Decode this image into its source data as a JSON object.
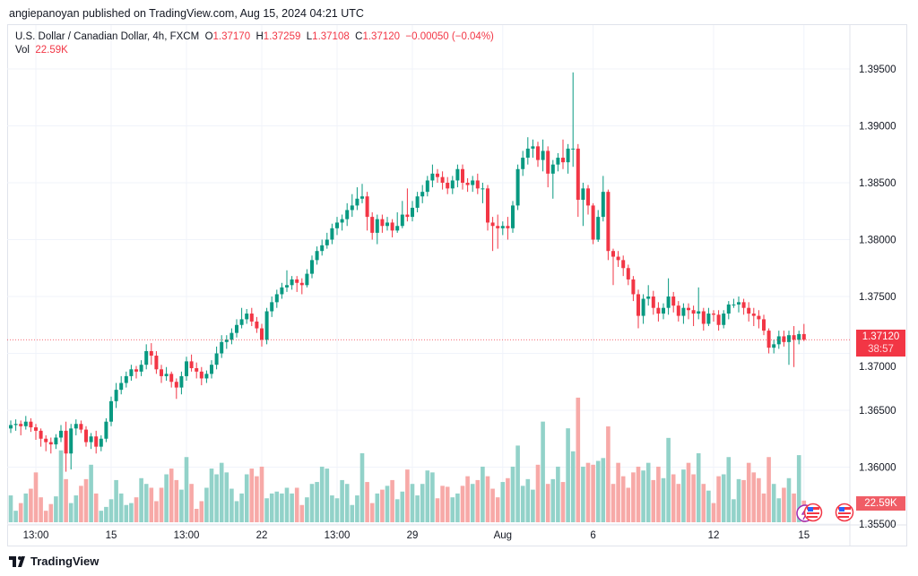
{
  "header": {
    "published": "angiepanoyan published on TradingView.com, Aug 15, 2024 04:21 UTC"
  },
  "legend": {
    "symbol": "U.S. Dollar / Canadian Dollar, 4h, FXCM",
    "o_label": "O",
    "o": "1.37170",
    "h_label": "H",
    "h": "1.37259",
    "l_label": "L",
    "l": "1.37108",
    "c_label": "C",
    "c": "1.37120",
    "change": "−0.00050 (−0.04%)",
    "vol_label": "Vol",
    "vol": "22.59K"
  },
  "price_label": {
    "price": "1.37120",
    "countdown": "38:57"
  },
  "volume_label": "22.59K",
  "footer": {
    "brand": "TradingView"
  },
  "colors": {
    "up": "#089981",
    "down": "#f23645",
    "up_vol": "#92d2c9",
    "down_vol": "#f7a9a7",
    "grid": "#f0f3fa"
  },
  "chart_data": {
    "type": "candlestick",
    "title": "U.S. Dollar / Canadian Dollar, 4h, FXCM",
    "first_open": 1.3634,
    "y_ticks": [
      "1.39500",
      "1.39000",
      "1.38500",
      "1.38000",
      "1.37500",
      "1.37000",
      "1.36500",
      "1.36000",
      "1.35500"
    ],
    "ylim": [
      1.355,
      1.3955
    ],
    "x_ticks": [
      {
        "label": "13:00",
        "index": 5
      },
      {
        "label": "15",
        "index": 20
      },
      {
        "label": "13:00",
        "index": 35
      },
      {
        "label": "22",
        "index": 50
      },
      {
        "label": "13:00",
        "index": 65
      },
      {
        "label": "29",
        "index": 80
      },
      {
        "label": "Aug",
        "index": 98
      },
      {
        "label": "6",
        "index": 116
      },
      {
        "label": "12",
        "index": 140
      },
      {
        "label": "15",
        "index": 158
      }
    ],
    "candles_format": "[close, high, low, volume_K] — open equals previous close",
    "candles": [
      [
        1.3637,
        1.3641,
        1.363,
        28
      ],
      [
        1.3638,
        1.3642,
        1.3632,
        12
      ],
      [
        1.3636,
        1.3641,
        1.3628,
        20
      ],
      [
        1.364,
        1.3645,
        1.3633,
        30
      ],
      [
        1.3635,
        1.3643,
        1.3631,
        35
      ],
      [
        1.3632,
        1.3638,
        1.3624,
        52
      ],
      [
        1.3625,
        1.3634,
        1.3618,
        26
      ],
      [
        1.3622,
        1.3628,
        1.3614,
        12
      ],
      [
        1.362,
        1.3626,
        1.3612,
        19
      ],
      [
        1.3626,
        1.3629,
        1.3616,
        27
      ],
      [
        1.3632,
        1.3637,
        1.3622,
        75
      ],
      [
        1.3612,
        1.364,
        1.3596,
        45
      ],
      [
        1.3634,
        1.3638,
        1.3598,
        20
      ],
      [
        1.3638,
        1.3642,
        1.3628,
        28
      ],
      [
        1.3633,
        1.3641,
        1.363,
        38
      ],
      [
        1.3622,
        1.3636,
        1.3618,
        45
      ],
      [
        1.3627,
        1.363,
        1.3616,
        60
      ],
      [
        1.3618,
        1.3632,
        1.3612,
        30
      ],
      [
        1.3625,
        1.3628,
        1.3614,
        12
      ],
      [
        1.364,
        1.3643,
        1.3622,
        16
      ],
      [
        1.3658,
        1.3662,
        1.3636,
        24
      ],
      [
        1.3668,
        1.3674,
        1.3652,
        44
      ],
      [
        1.3674,
        1.368,
        1.3664,
        30
      ],
      [
        1.368,
        1.3684,
        1.367,
        18
      ],
      [
        1.3686,
        1.369,
        1.3676,
        20
      ],
      [
        1.3684,
        1.3689,
        1.3678,
        26
      ],
      [
        1.369,
        1.3694,
        1.368,
        46
      ],
      [
        1.3702,
        1.3708,
        1.3686,
        40
      ],
      [
        1.3698,
        1.3709,
        1.369,
        36
      ],
      [
        1.3686,
        1.3702,
        1.3682,
        22
      ],
      [
        1.368,
        1.369,
        1.3674,
        36
      ],
      [
        1.3682,
        1.3688,
        1.3676,
        50
      ],
      [
        1.3675,
        1.3684,
        1.367,
        56
      ],
      [
        1.367,
        1.3678,
        1.366,
        44
      ],
      [
        1.368,
        1.3684,
        1.3664,
        34
      ],
      [
        1.3693,
        1.3697,
        1.3676,
        68
      ],
      [
        1.3687,
        1.3699,
        1.3684,
        40
      ],
      [
        1.3684,
        1.3692,
        1.3678,
        14
      ],
      [
        1.3678,
        1.3688,
        1.3672,
        22
      ],
      [
        1.3682,
        1.3685,
        1.3674,
        36
      ],
      [
        1.369,
        1.3694,
        1.3678,
        56
      ],
      [
        1.37,
        1.3706,
        1.3686,
        50
      ],
      [
        1.371,
        1.3716,
        1.3696,
        62
      ],
      [
        1.3712,
        1.3716,
        1.3704,
        52
      ],
      [
        1.3718,
        1.3722,
        1.3708,
        35
      ],
      [
        1.3725,
        1.373,
        1.3714,
        22
      ],
      [
        1.373,
        1.374,
        1.3722,
        30
      ],
      [
        1.3735,
        1.3739,
        1.3726,
        50
      ],
      [
        1.3728,
        1.374,
        1.3724,
        56
      ],
      [
        1.3722,
        1.3732,
        1.3718,
        48
      ],
      [
        1.3712,
        1.3726,
        1.3706,
        58
      ],
      [
        1.3737,
        1.374,
        1.3708,
        25
      ],
      [
        1.3745,
        1.375,
        1.3732,
        30
      ],
      [
        1.3752,
        1.3756,
        1.374,
        32
      ],
      [
        1.3758,
        1.3762,
        1.3748,
        30
      ],
      [
        1.376,
        1.3773,
        1.3754,
        36
      ],
      [
        1.3765,
        1.3768,
        1.3756,
        30
      ],
      [
        1.3762,
        1.3768,
        1.3754,
        36
      ],
      [
        1.376,
        1.3766,
        1.3752,
        18
      ],
      [
        1.377,
        1.3774,
        1.3758,
        26
      ],
      [
        1.3782,
        1.3786,
        1.3766,
        40
      ],
      [
        1.379,
        1.3794,
        1.3778,
        42
      ],
      [
        1.3795,
        1.38,
        1.3786,
        58
      ],
      [
        1.38,
        1.3806,
        1.3792,
        56
      ],
      [
        1.381,
        1.3814,
        1.3796,
        28
      ],
      [
        1.3815,
        1.382,
        1.3804,
        25
      ],
      [
        1.3818,
        1.3822,
        1.3808,
        44
      ],
      [
        1.3826,
        1.3832,
        1.3812,
        40
      ],
      [
        1.383,
        1.384,
        1.382,
        18
      ],
      [
        1.3836,
        1.3846,
        1.3826,
        28
      ],
      [
        1.3838,
        1.3849,
        1.3832,
        72
      ],
      [
        1.382,
        1.3842,
        1.3808,
        42
      ],
      [
        1.3806,
        1.3824,
        1.38,
        20
      ],
      [
        1.3818,
        1.3822,
        1.3796,
        30
      ],
      [
        1.3812,
        1.3822,
        1.3806,
        34
      ],
      [
        1.3815,
        1.382,
        1.3808,
        38
      ],
      [
        1.3808,
        1.3818,
        1.3802,
        44
      ],
      [
        1.3812,
        1.3824,
        1.3806,
        24
      ],
      [
        1.3822,
        1.3834,
        1.381,
        32
      ],
      [
        1.382,
        1.3845,
        1.3816,
        55
      ],
      [
        1.3828,
        1.3834,
        1.3816,
        40
      ],
      [
        1.3838,
        1.3842,
        1.3824,
        28
      ],
      [
        1.3842,
        1.3848,
        1.3832,
        40
      ],
      [
        1.3852,
        1.3856,
        1.3838,
        54
      ],
      [
        1.3858,
        1.3866,
        1.3846,
        52
      ],
      [
        1.3855,
        1.3862,
        1.385,
        25
      ],
      [
        1.385,
        1.386,
        1.3844,
        38
      ],
      [
        1.3845,
        1.3855,
        1.384,
        37
      ],
      [
        1.3852,
        1.3856,
        1.384,
        26
      ],
      [
        1.3862,
        1.3866,
        1.3846,
        30
      ],
      [
        1.385,
        1.3866,
        1.3844,
        38
      ],
      [
        1.3848,
        1.3854,
        1.3842,
        48
      ],
      [
        1.3852,
        1.3856,
        1.3842,
        40
      ],
      [
        1.3845,
        1.3858,
        1.384,
        44
      ],
      [
        1.3845,
        1.385,
        1.3832,
        58
      ],
      [
        1.3815,
        1.3848,
        1.3808,
        48
      ],
      [
        1.3812,
        1.382,
        1.379,
        35
      ],
      [
        1.381,
        1.3822,
        1.3792,
        26
      ],
      [
        1.3812,
        1.3816,
        1.3804,
        42
      ],
      [
        1.381,
        1.382,
        1.38,
        46
      ],
      [
        1.383,
        1.3834,
        1.3806,
        58
      ],
      [
        1.3862,
        1.3866,
        1.3826,
        80
      ],
      [
        1.3872,
        1.3878,
        1.3856,
        38
      ],
      [
        1.388,
        1.389,
        1.3866,
        45
      ],
      [
        1.3882,
        1.3888,
        1.3872,
        34
      ],
      [
        1.387,
        1.3886,
        1.3864,
        60
      ],
      [
        1.3878,
        1.3888,
        1.386,
        105
      ],
      [
        1.3858,
        1.3882,
        1.3846,
        40
      ],
      [
        1.3866,
        1.387,
        1.3836,
        45
      ],
      [
        1.3872,
        1.3876,
        1.386,
        58
      ],
      [
        1.3868,
        1.3888,
        1.3862,
        42
      ],
      [
        1.388,
        1.3884,
        1.3858,
        98
      ],
      [
        1.388,
        1.3947,
        1.3864,
        74
      ],
      [
        1.3835,
        1.3884,
        1.382,
        130
      ],
      [
        1.3845,
        1.385,
        1.3812,
        58
      ],
      [
        1.383,
        1.3848,
        1.3822,
        62
      ],
      [
        1.38,
        1.3832,
        1.3796,
        60
      ],
      [
        1.382,
        1.3826,
        1.3798,
        64
      ],
      [
        1.3842,
        1.3856,
        1.3816,
        67
      ],
      [
        1.379,
        1.3844,
        1.3782,
        100
      ],
      [
        1.3785,
        1.3792,
        1.376,
        40
      ],
      [
        1.3782,
        1.379,
        1.3776,
        62
      ],
      [
        1.3775,
        1.3786,
        1.3768,
        48
      ],
      [
        1.3765,
        1.3778,
        1.376,
        36
      ],
      [
        1.3752,
        1.3768,
        1.3746,
        52
      ],
      [
        1.3733,
        1.3756,
        1.3722,
        58
      ],
      [
        1.3748,
        1.3752,
        1.3726,
        54
      ],
      [
        1.375,
        1.376,
        1.3742,
        62
      ],
      [
        1.374,
        1.3755,
        1.3734,
        44
      ],
      [
        1.3735,
        1.3745,
        1.3728,
        58
      ],
      [
        1.374,
        1.3744,
        1.373,
        46
      ],
      [
        1.375,
        1.3766,
        1.3734,
        88
      ],
      [
        1.3742,
        1.3754,
        1.3736,
        50
      ],
      [
        1.3733,
        1.3746,
        1.3728,
        40
      ],
      [
        1.374,
        1.3744,
        1.3726,
        55
      ],
      [
        1.3738,
        1.3744,
        1.373,
        62
      ],
      [
        1.3735,
        1.3742,
        1.3724,
        50
      ],
      [
        1.3737,
        1.3758,
        1.373,
        72
      ],
      [
        1.3726,
        1.374,
        1.372,
        40
      ],
      [
        1.3735,
        1.374,
        1.3724,
        33
      ],
      [
        1.3734,
        1.3738,
        1.3728,
        20
      ],
      [
        1.3725,
        1.3738,
        1.372,
        48
      ],
      [
        1.3735,
        1.3738,
        1.3722,
        50
      ],
      [
        1.3743,
        1.3746,
        1.373,
        68
      ],
      [
        1.3743,
        1.3748,
        1.374,
        24
      ],
      [
        1.3745,
        1.375,
        1.3736,
        45
      ],
      [
        1.374,
        1.3748,
        1.3734,
        44
      ],
      [
        1.3735,
        1.3745,
        1.3728,
        62
      ],
      [
        1.3733,
        1.374,
        1.3724,
        52
      ],
      [
        1.373,
        1.3738,
        1.3722,
        46
      ],
      [
        1.372,
        1.3734,
        1.3716,
        30
      ],
      [
        1.3705,
        1.3722,
        1.37,
        68
      ],
      [
        1.3708,
        1.3712,
        1.37,
        40
      ],
      [
        1.3715,
        1.372,
        1.3704,
        25
      ],
      [
        1.371,
        1.372,
        1.3706,
        36
      ],
      [
        1.3716,
        1.372,
        1.369,
        46
      ],
      [
        1.3712,
        1.3724,
        1.3688,
        30
      ],
      [
        1.3717,
        1.372,
        1.3708,
        70
      ],
      [
        1.3712,
        1.37259,
        1.37108,
        22.59
      ]
    ]
  }
}
